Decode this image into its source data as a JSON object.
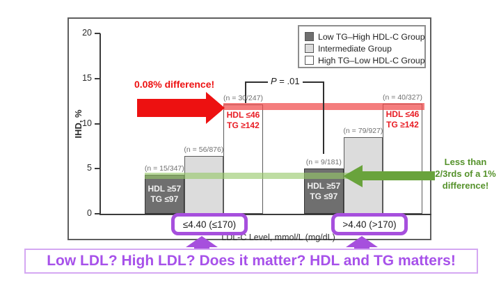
{
  "chart_data": {
    "type": "bar",
    "title": "",
    "categories": [
      "≤4.40 (≤170)",
      ">4.40 (>170)"
    ],
    "xlabel": "LDL-C Level, mmol/L (mg/dL)",
    "ylabel": "IHD, %",
    "ylim": [
      0,
      20
    ],
    "yticks": [
      0,
      5,
      10,
      15,
      20
    ],
    "grid": false,
    "legend_position": "top-right",
    "series": [
      {
        "name": "Low TG–High HDL-C Group",
        "color": "#6f6f6f",
        "border_color": "#333333",
        "values": [
          4.3,
          5.0
        ],
        "n_labels": [
          "(n = 15/347)",
          "(n = 9/181)"
        ],
        "bar_text_lines": [
          "HDL ≥57",
          "TG ≤97"
        ],
        "bar_text_color": "#f2f2f2"
      },
      {
        "name": "Intermediate Group",
        "color": "#dcdcdc",
        "border_color": "#5a5a5a",
        "values": [
          6.4,
          8.5
        ],
        "n_labels": [
          "(n = 56/876)",
          "(n = 79/927)"
        ]
      },
      {
        "name": "High TG–Low HDL-C Group",
        "color": "#ffffff",
        "border_color": "#5a5a5a",
        "values": [
          12.1,
          12.2
        ],
        "n_labels": [
          "(n = 30/247)",
          "(n = 40/327)"
        ],
        "bar_text_lines": [
          "HDL ≤46",
          "TG ≥142"
        ],
        "bar_text_color": "#e81c24"
      }
    ],
    "p_value_label": {
      "italic": "P",
      "rest": " = .01"
    }
  },
  "annotations": {
    "red_callout": {
      "text": "0.08% difference!",
      "color": "#ed1111",
      "points_at_pct": 12.1
    },
    "green_callout": {
      "lines": [
        "Less than",
        "2/3rds of a 1%",
        "difference!"
      ],
      "color": "#55922b",
      "points_at_pct": 5.0
    },
    "highlight_bands": {
      "red_band_pct": 12.2,
      "green_band_pct": 4.6
    },
    "banner": {
      "text": "Low LDL? High LDL? Does it matter? HDL and TG matters!",
      "color": "#a751ea"
    },
    "purple": "#a64fdd"
  }
}
